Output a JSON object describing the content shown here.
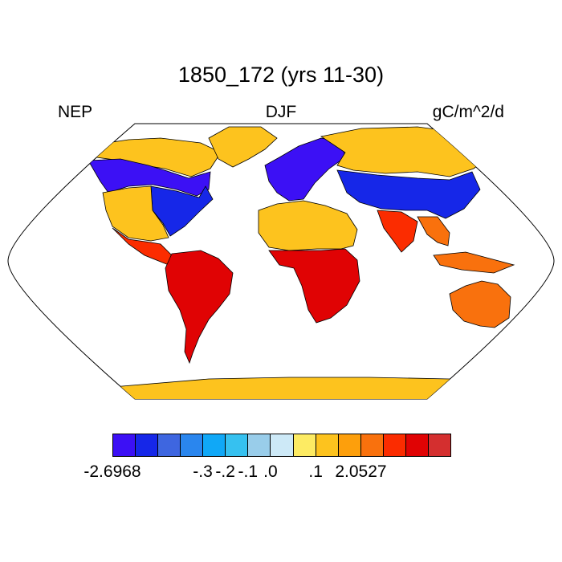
{
  "title": "1850_172 (yrs 11-30)",
  "variable": "NEP",
  "season": "DJF",
  "units": "gC/m^2/d",
  "colors": {
    "ocean": "#ffffff",
    "land_default": "#fdc31e",
    "coastline": "#000000"
  },
  "colorbar": {
    "colors": [
      "#3c10f5",
      "#1627e8",
      "#3e66e0",
      "#2a86ee",
      "#10a8f7",
      "#36c1f0",
      "#99cdea",
      "#cde9f7",
      "#fdeb63",
      "#fdc31e",
      "#fd9f0c",
      "#f9710d",
      "#fb2c00",
      "#e00304",
      "#d42f2f"
    ],
    "labels": [
      {
        "text": "-2.6968",
        "boundary": 0
      },
      {
        "text": "-.3",
        "boundary": 4
      },
      {
        "text": "-.2",
        "boundary": 5
      },
      {
        "text": "-.1",
        "boundary": 6
      },
      {
        "text": ".0",
        "boundary": 7
      },
      {
        "text": ".1",
        "boundary": 9
      },
      {
        "text": "2.0527",
        "boundary": 11
      }
    ]
  },
  "regions": [
    {
      "name": "alaska-canada-north",
      "color": "#fdc31e"
    },
    {
      "name": "canada-west-negative",
      "color": "#3c10f5"
    },
    {
      "name": "usa-east-negative",
      "color": "#1627e8"
    },
    {
      "name": "usa-central",
      "color": "#fdc31e"
    },
    {
      "name": "central-america-positive",
      "color": "#fb2c00"
    },
    {
      "name": "south-america-positive",
      "color": "#e00304"
    },
    {
      "name": "greenland",
      "color": "#fdc31e"
    },
    {
      "name": "europe-negative",
      "color": "#3c10f5"
    },
    {
      "name": "siberia",
      "color": "#fdc31e"
    },
    {
      "name": "east-asia-negative",
      "color": "#1627e8"
    },
    {
      "name": "sahara",
      "color": "#fdc31e"
    },
    {
      "name": "africa-tropics-positive",
      "color": "#e00304"
    },
    {
      "name": "india-positive",
      "color": "#fb2c00"
    },
    {
      "name": "se-asia-positive",
      "color": "#f9710d"
    },
    {
      "name": "australia-positive",
      "color": "#f9710d"
    },
    {
      "name": "new-zealand-positive",
      "color": "#e00304"
    },
    {
      "name": "antarctica",
      "color": "#fdc31e"
    }
  ]
}
